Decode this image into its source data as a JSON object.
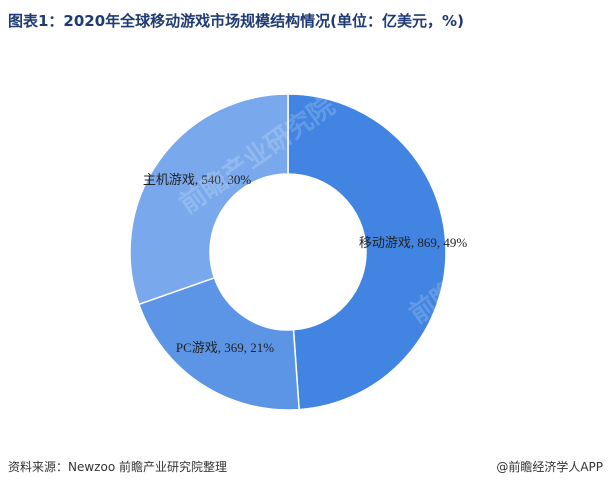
{
  "title": "图表1：2020年全球移动游戏市场规模结构情况(单位：亿美元，%)",
  "source": "资料来源：Newzoo 前瞻产业研究院整理",
  "credit": "@前瞻经济学人APP",
  "watermark": "前瞻产业研究院",
  "chart_data": {
    "type": "pie",
    "donut": true,
    "unit": "亿美元",
    "categories": [
      "移动游戏",
      "PC游戏",
      "主机游戏"
    ],
    "values": [
      869,
      369,
      540
    ],
    "percents": [
      49,
      21,
      30
    ],
    "labels": [
      "移动游戏, 869, 49%",
      "PC游戏, 369, 21%",
      "主机游戏, 540, 30%"
    ],
    "colors": [
      "#4184e1",
      "#5c94e6",
      "#79a9ec"
    ]
  }
}
